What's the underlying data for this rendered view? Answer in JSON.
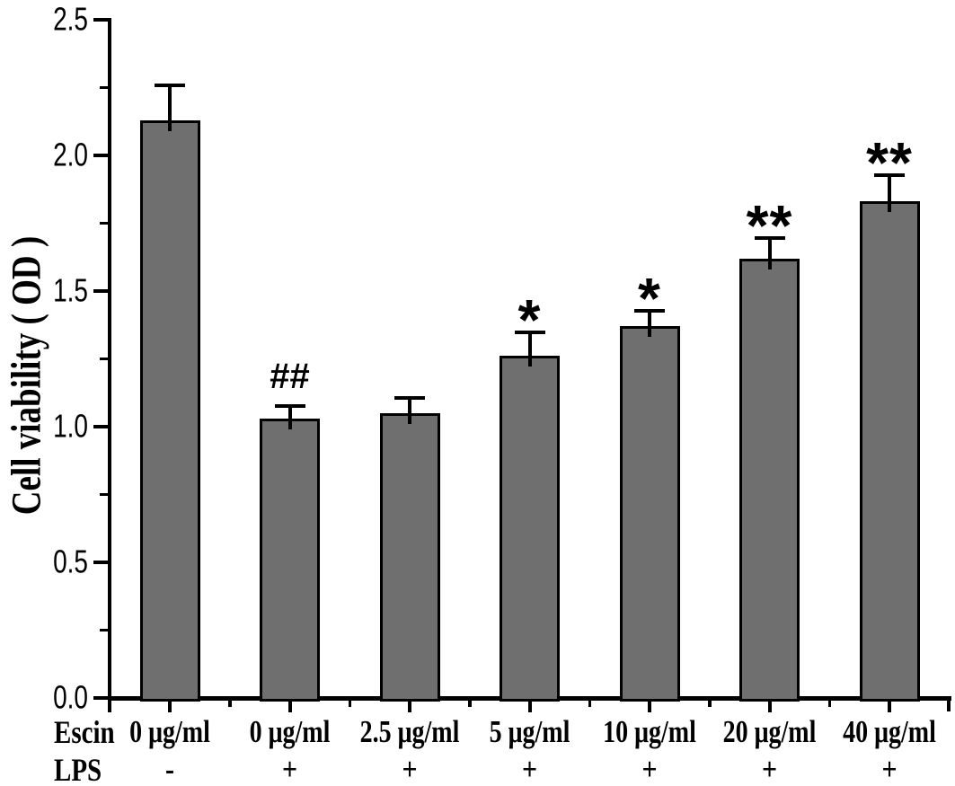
{
  "chart_data": {
    "type": "bar",
    "title": "",
    "ylabel": "Cell viability ( OD )",
    "xlabel": "",
    "ylim": [
      0,
      2.5
    ],
    "ytick_values": [
      0,
      0.5,
      1.0,
      1.5,
      2.0,
      2.5
    ],
    "ytick_labels": [
      "0.0",
      "0.5",
      "1.0",
      "1.5",
      "2.0",
      "2.5"
    ],
    "yminor_values": [
      0.25,
      0.75,
      1.25,
      1.75,
      2.25
    ],
    "grid": false,
    "legend": false,
    "bar_fill_color": "#6f6f6f",
    "bar_edge_color": "#000000",
    "background_color": "#ffffff",
    "row_headers": {
      "escin": "Escin",
      "lps": "LPS"
    },
    "bars": [
      {
        "escin": "0 μg/ml",
        "lps": "-",
        "value": 2.13,
        "error": 0.13,
        "annotation": ""
      },
      {
        "escin": "0 μg/ml",
        "lps": "+",
        "value": 1.03,
        "error": 0.05,
        "annotation": "##"
      },
      {
        "escin": "2.5 μg/ml",
        "lps": "+",
        "value": 1.05,
        "error": 0.06,
        "annotation": ""
      },
      {
        "escin": "5 μg/ml",
        "lps": "+",
        "value": 1.26,
        "error": 0.09,
        "annotation": "*"
      },
      {
        "escin": "10 μg/ml",
        "lps": "+",
        "value": 1.37,
        "error": 0.06,
        "annotation": "*"
      },
      {
        "escin": "20 μg/ml",
        "lps": "+",
        "value": 1.62,
        "error": 0.08,
        "annotation": "**"
      },
      {
        "escin": "40 μg/ml",
        "lps": "+",
        "value": 1.83,
        "error": 0.1,
        "annotation": "**"
      }
    ]
  }
}
